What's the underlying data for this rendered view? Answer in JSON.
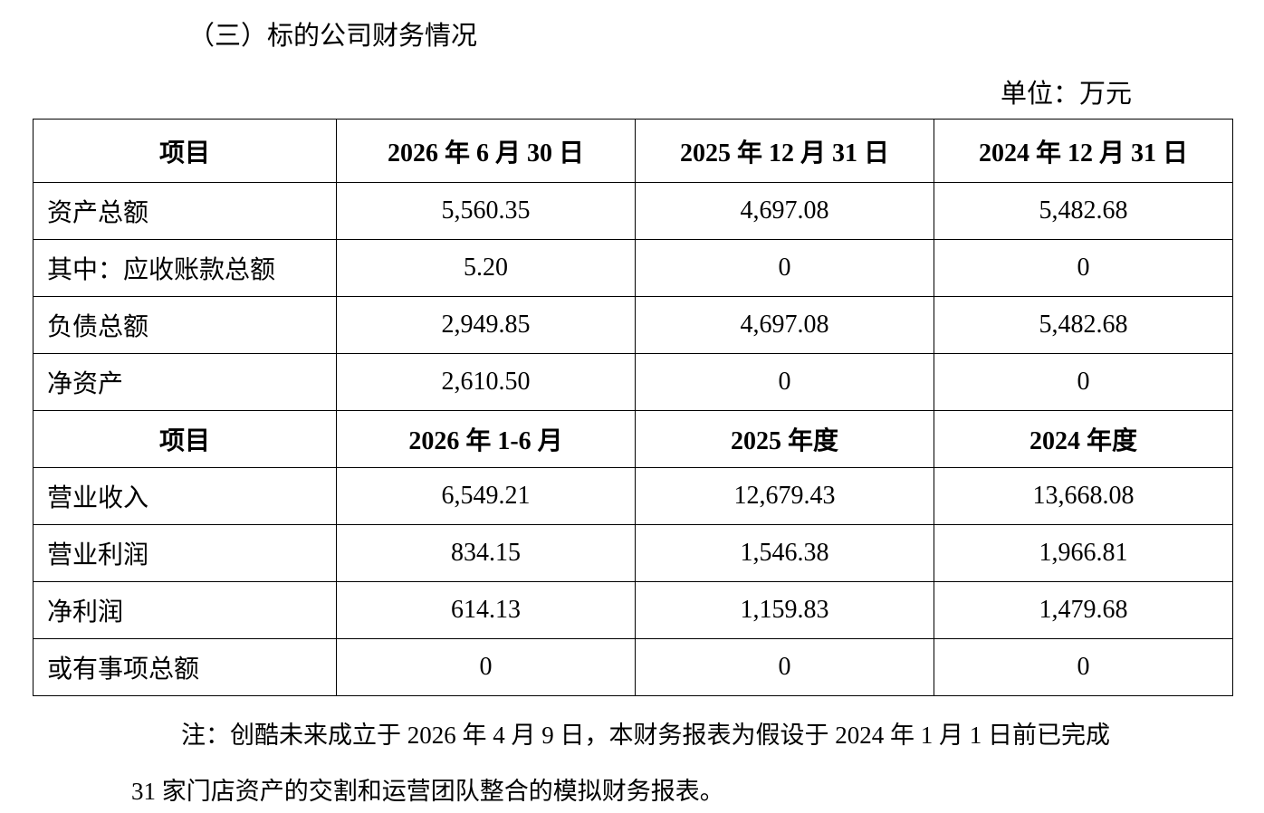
{
  "header": {
    "title": "（三）标的公司财务情况",
    "unit": "单位：万元"
  },
  "table": {
    "sections": [
      {
        "header": [
          "项目",
          "2026 年 6 月 30 日",
          "2025 年 12 月 31 日",
          "2024 年 12 月 31 日"
        ],
        "rows": [
          [
            "资产总额",
            "5,560.35",
            "4,697.08",
            "5,482.68"
          ],
          [
            "其中：应收账款总额",
            "5.20",
            "0",
            "0"
          ],
          [
            "负债总额",
            "2,949.85",
            "4,697.08",
            "5,482.68"
          ],
          [
            "净资产",
            "2,610.50",
            "0",
            "0"
          ]
        ]
      },
      {
        "header": [
          "项目",
          "2026 年 1-6 月",
          "2025 年度",
          "2024 年度"
        ],
        "rows": [
          [
            "营业收入",
            "6,549.21",
            "12,679.43",
            "13,668.08"
          ],
          [
            "营业利润",
            "834.15",
            "1,546.38",
            "1,966.81"
          ],
          [
            "净利润",
            "614.13",
            "1,159.83",
            "1,479.68"
          ],
          [
            "或有事项总额",
            "0",
            "0",
            "0"
          ]
        ]
      }
    ]
  },
  "note": [
    "注：创酷未来成立于 2026 年 4 月 9 日，本财务报表为假设于 2024 年 1 月 1 日前已完成",
    "31 家门店资产的交割和运营团队整合的模拟财务报表。"
  ]
}
